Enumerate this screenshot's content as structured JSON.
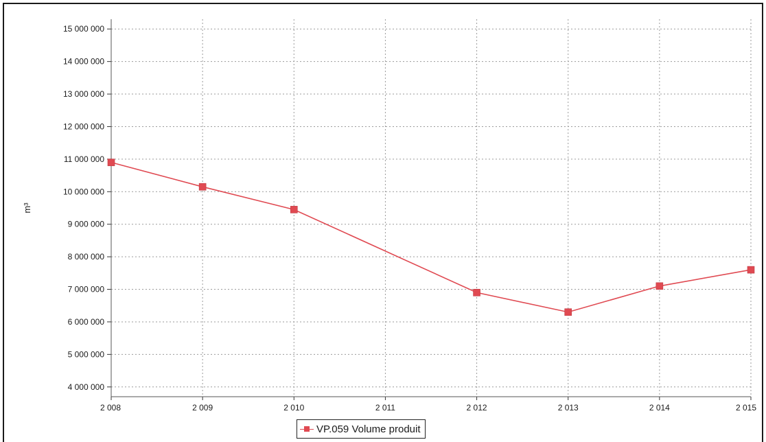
{
  "chart_data": {
    "type": "line",
    "title": "",
    "xlabel": "",
    "ylabel": "m³",
    "categories": [
      "2 008",
      "2 009",
      "2 010",
      "2 011",
      "2 012",
      "2 013",
      "2 014",
      "2 015"
    ],
    "x": [
      2008,
      2009,
      2010,
      2011,
      2012,
      2013,
      2014,
      2015
    ],
    "y_ticks": [
      "4 000 000",
      "5 000 000",
      "6 000 000",
      "7 000 000",
      "8 000 000",
      "9 000 000",
      "10 000 000",
      "11 000 000",
      "12 000 000",
      "13 000 000",
      "14 000 000",
      "15 000 000"
    ],
    "ylim": [
      3700000,
      15300000
    ],
    "grid": true,
    "legend_position": "bottom-center",
    "series": [
      {
        "name": "VP.059 Volume produit",
        "color": "#e04a52",
        "x": [
          2008,
          2009,
          2010,
          2012,
          2013,
          2014,
          2015
        ],
        "values": [
          10900000,
          10150000,
          9450000,
          6900000,
          6300000,
          7100000,
          7600000
        ]
      }
    ]
  }
}
